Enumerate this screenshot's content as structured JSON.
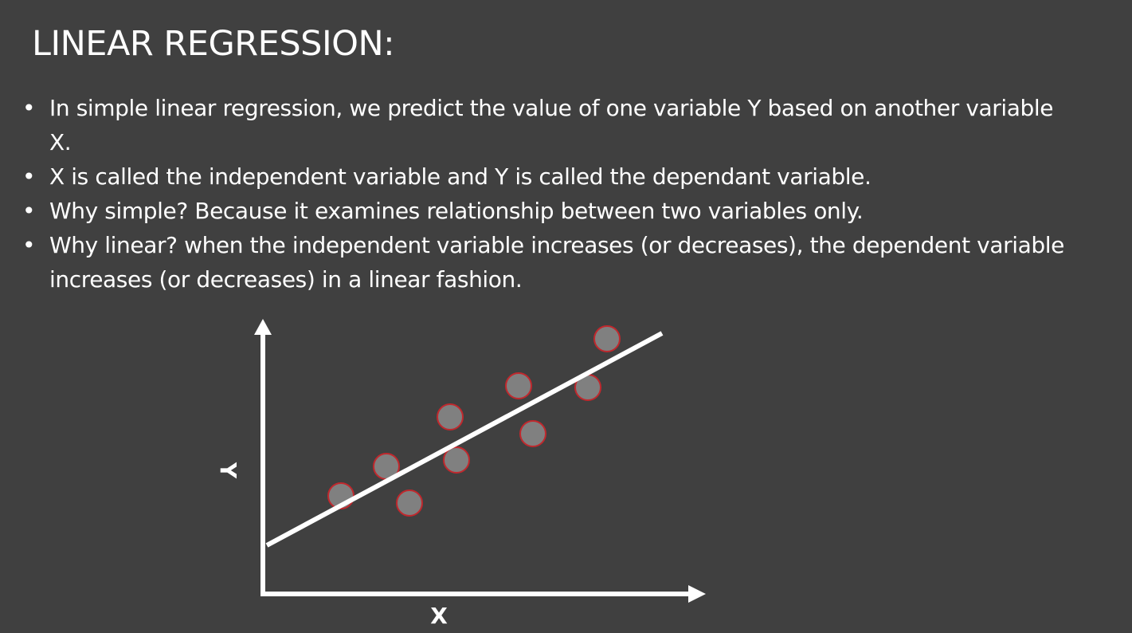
{
  "slide": {
    "title": "LINEAR REGRESSION:",
    "bullets": [
      "In simple linear regression, we predict the value of one variable Y based on another variable X.",
      "X is called the independent variable and Y is called the dependant variable.",
      "Why simple? Because it examines relationship between two variables only.",
      "Why linear? when the independent variable increases (or decreases), the dependent variable increases (or decreases) in a linear fashion."
    ],
    "bullet_glyph": "•"
  },
  "diagram": {
    "type": "scatter-with-regression-line",
    "x_label": "X",
    "y_label": "Y",
    "point_count": 9,
    "colors": {
      "background": "#404040",
      "axes": "#ffffff",
      "regression_line": "#ffffff",
      "point_fill": "#808080",
      "point_stroke": "#c0282d",
      "text": "#ffffff"
    }
  }
}
